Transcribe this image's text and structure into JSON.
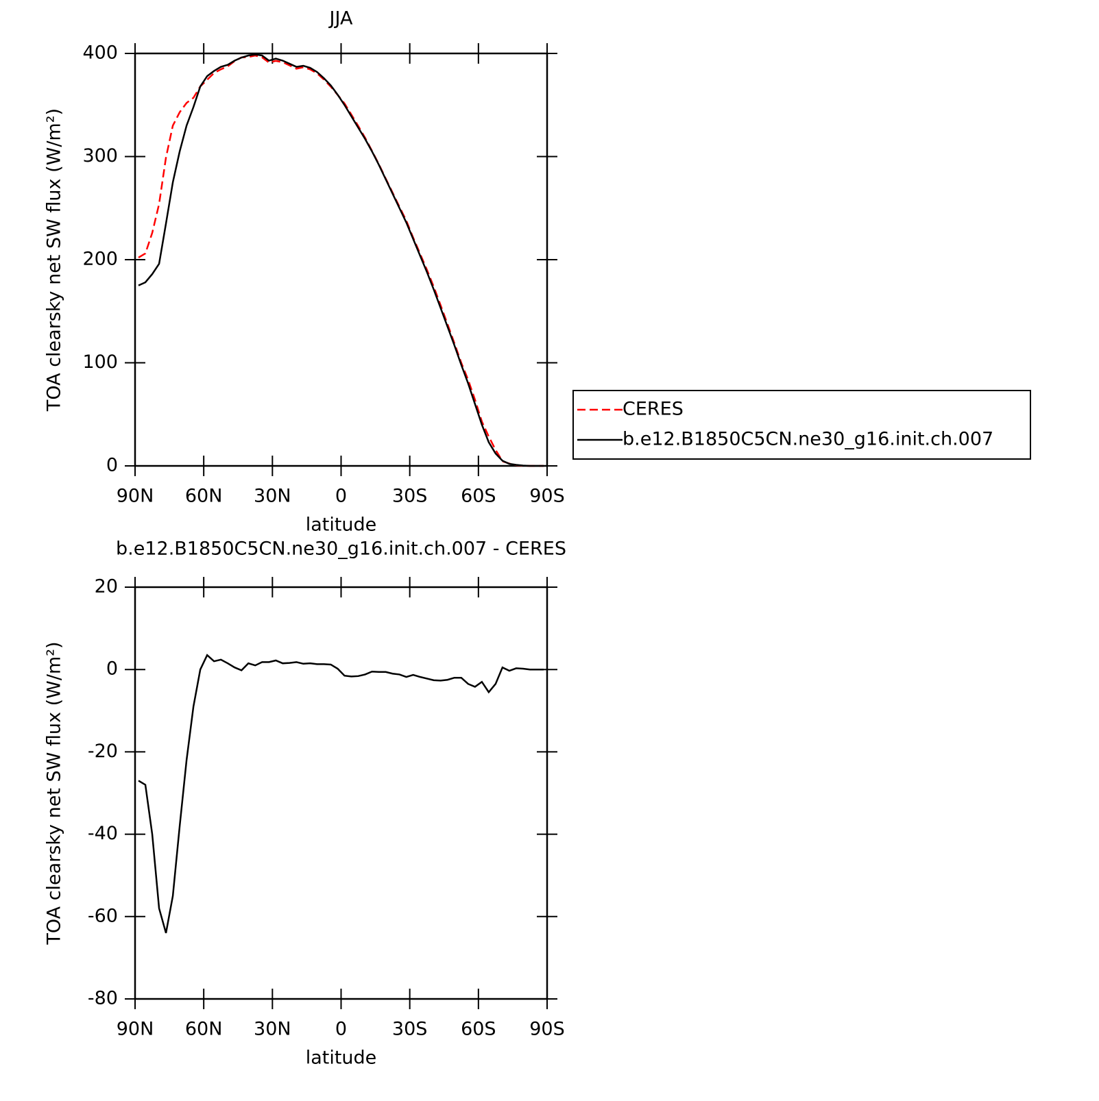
{
  "chart_data": [
    {
      "type": "line",
      "title": "JJA",
      "xlabel": "latitude",
      "ylabel": "TOA clearsky net SW flux (W/m²)",
      "x": [
        88.5,
        85.5,
        82.5,
        79.5,
        76.5,
        73.5,
        70.5,
        67.5,
        64.5,
        61.5,
        58.5,
        55.5,
        52.5,
        49.5,
        46.5,
        43.5,
        40.5,
        37.5,
        34.5,
        31.5,
        28.5,
        25.5,
        22.5,
        19.5,
        16.5,
        13.5,
        10.5,
        7.5,
        4.5,
        1.5,
        -1.5,
        -4.5,
        -7.5,
        -10.5,
        -13.5,
        -16.5,
        -19.5,
        -22.5,
        -25.5,
        -28.5,
        -31.5,
        -34.5,
        -37.5,
        -40.5,
        -43.5,
        -46.5,
        -49.5,
        -52.5,
        -55.5,
        -58.5,
        -61.5,
        -64.5,
        -67.5,
        -70.5,
        -73.5,
        -76.5,
        -79.5,
        -82.5,
        -85.5,
        -88.5
      ],
      "series": [
        {
          "name": "CERES",
          "color": "#ff0000",
          "dash": true,
          "values": [
            202,
            206,
            226,
            254,
            299,
            330,
            343,
            352,
            357,
            368,
            374.5,
            381,
            384.6,
            387.5,
            392.5,
            396.2,
            396.5,
            398,
            396.2,
            391.2,
            392.8,
            391.5,
            388.4,
            385.2,
            386.6,
            384.5,
            380.7,
            374.7,
            367.8,
            359.8,
            351.5,
            340.7,
            329.6,
            318.2,
            305.5,
            292.6,
            278.6,
            265,
            251.2,
            237.8,
            221.3,
            205.8,
            190.2,
            173.6,
            155.7,
            137.5,
            119,
            100,
            83.5,
            64.2,
            43,
            28.5,
            15.5,
            4.5,
            2.3,
            0.7,
            0.1,
            0,
            0,
            0
          ]
        },
        {
          "name": "b.e12.B1850C5CN.ne30_g16.init.ch.007",
          "color": "#000000",
          "dash": false,
          "values": [
            175,
            178,
            186,
            196,
            235,
            275,
            305,
            330,
            348,
            368,
            378,
            383,
            387,
            389,
            393,
            396,
            398,
            399,
            398,
            393,
            395,
            393,
            390,
            387,
            388,
            386,
            382,
            376,
            369,
            360,
            350,
            339,
            328,
            317,
            305,
            292,
            278,
            264,
            250,
            236,
            220,
            204,
            188,
            171,
            153,
            135,
            117,
            98,
            80,
            60,
            40,
            23,
            12,
            5,
            2,
            1,
            0.3,
            0,
            0,
            0
          ]
        }
      ],
      "xlim": [
        90,
        -90
      ],
      "xticks": [
        {
          "value": 90,
          "label": "90N"
        },
        {
          "value": 60,
          "label": "60N"
        },
        {
          "value": 30,
          "label": "30N"
        },
        0,
        {
          "value": -30,
          "label": "30S"
        },
        {
          "value": -60,
          "label": "60S"
        },
        {
          "value": -90,
          "label": "90S"
        }
      ],
      "ylim": [
        0,
        400
      ],
      "yticks": [
        0,
        100,
        200,
        300,
        400
      ],
      "legend": "right"
    },
    {
      "type": "line",
      "title": "b.e12.B1850C5CN.ne30_g16.init.ch.007 - CERES",
      "xlabel": "latitude",
      "ylabel": "TOA clearsky net SW flux (W/m²)",
      "x": [
        88.5,
        85.5,
        82.5,
        79.5,
        76.5,
        73.5,
        70.5,
        67.5,
        64.5,
        61.5,
        58.5,
        55.5,
        52.5,
        49.5,
        46.5,
        43.5,
        40.5,
        37.5,
        34.5,
        31.5,
        28.5,
        25.5,
        22.5,
        19.5,
        16.5,
        13.5,
        10.5,
        7.5,
        4.5,
        1.5,
        -1.5,
        -4.5,
        -7.5,
        -10.5,
        -13.5,
        -16.5,
        -19.5,
        -22.5,
        -25.5,
        -28.5,
        -31.5,
        -34.5,
        -37.5,
        -40.5,
        -43.5,
        -46.5,
        -49.5,
        -52.5,
        -55.5,
        -58.5,
        -61.5,
        -64.5,
        -67.5,
        -70.5,
        -73.5,
        -76.5,
        -79.5,
        -82.5,
        -85.5,
        -88.5
      ],
      "series": [
        {
          "color": "#000000",
          "dash": false,
          "values": [
            -27,
            -28,
            -40,
            -58,
            -64,
            -55,
            -38,
            -22,
            -9,
            0,
            3.5,
            2,
            2.4,
            1.5,
            0.5,
            -0.2,
            1.5,
            1,
            1.8,
            1.8,
            2.2,
            1.5,
            1.6,
            1.8,
            1.4,
            1.5,
            1.3,
            1.3,
            1.2,
            0.2,
            -1.5,
            -1.7,
            -1.6,
            -1.2,
            -0.5,
            -0.6,
            -0.6,
            -1,
            -1.2,
            -1.8,
            -1.3,
            -1.8,
            -2.2,
            -2.6,
            -2.7,
            -2.5,
            -2,
            -2,
            -3.5,
            -4.2,
            -3,
            -5.5,
            -3.5,
            0.5,
            -0.3,
            0.3,
            0.2,
            0,
            0,
            0
          ]
        }
      ],
      "xlim": [
        90,
        -90
      ],
      "xticks": [
        {
          "value": 90,
          "label": "90N"
        },
        {
          "value": 60,
          "label": "60N"
        },
        {
          "value": 30,
          "label": "30N"
        },
        0,
        {
          "value": -30,
          "label": "30S"
        },
        {
          "value": -60,
          "label": "60S"
        },
        {
          "value": -90,
          "label": "90S"
        }
      ],
      "ylim": [
        -80,
        20
      ],
      "yticks": [
        -80,
        -60,
        -40,
        -20,
        0,
        20
      ]
    }
  ]
}
